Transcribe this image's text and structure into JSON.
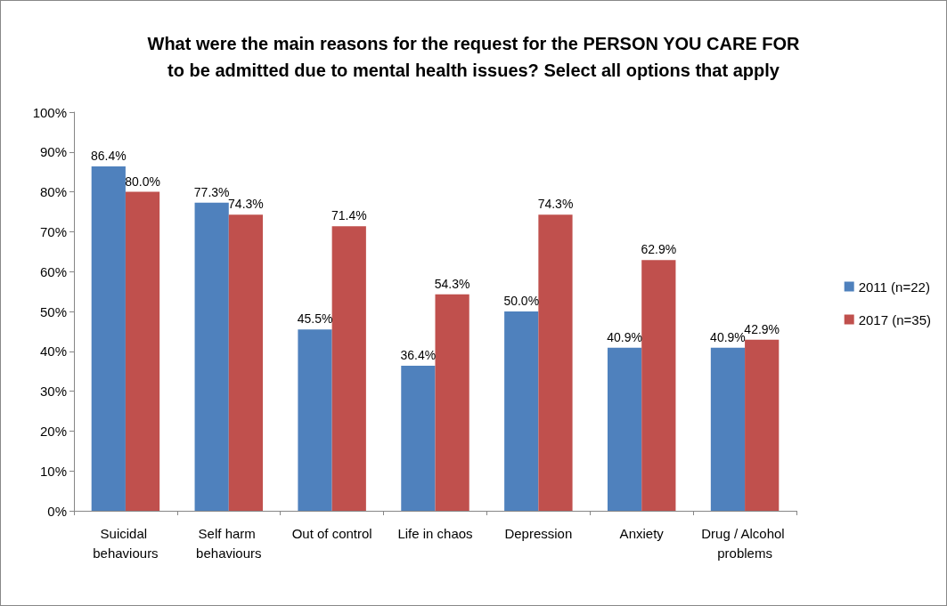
{
  "chart_data": {
    "type": "bar",
    "title": "What were the main reasons for the request for the PERSON YOU CARE FOR\nto be admitted due to mental health issues? Select all options that apply",
    "categories": [
      "Suicidal behaviours",
      "Self harm behaviours",
      "Out of control",
      "Life in chaos",
      "Depression",
      "Anxiety",
      "Drug / Alcohol problems"
    ],
    "series": [
      {
        "name": "2011 (n=22)",
        "color": "#4f81bd",
        "values": [
          86.4,
          77.3,
          45.5,
          36.4,
          50.0,
          40.9,
          40.9
        ],
        "value_labels": [
          "86.4%",
          "77.3%",
          "45.5%",
          "36.4%",
          "50.0%",
          "40.9%",
          "40.9%"
        ]
      },
      {
        "name": "2017 (n=35)",
        "color": "#c0504d",
        "values": [
          80.0,
          74.3,
          71.4,
          54.3,
          74.3,
          62.9,
          42.9
        ],
        "value_labels": [
          "80.0%",
          "74.3%",
          "71.4%",
          "54.3%",
          "74.3%",
          "62.9%",
          "42.9%"
        ]
      }
    ],
    "ylim": [
      0,
      100
    ],
    "yticks": [
      {
        "value": 0,
        "label": "0%"
      },
      {
        "value": 10,
        "label": "10%"
      },
      {
        "value": 20,
        "label": "20%"
      },
      {
        "value": 30,
        "label": "30%"
      },
      {
        "value": 40,
        "label": "40%"
      },
      {
        "value": 50,
        "label": "50%"
      },
      {
        "value": 60,
        "label": "60%"
      },
      {
        "value": 70,
        "label": "70%"
      },
      {
        "value": 80,
        "label": "80%"
      },
      {
        "value": 90,
        "label": "90%"
      },
      {
        "value": 100,
        "label": "100%"
      }
    ],
    "legend": "right",
    "grid": false
  }
}
